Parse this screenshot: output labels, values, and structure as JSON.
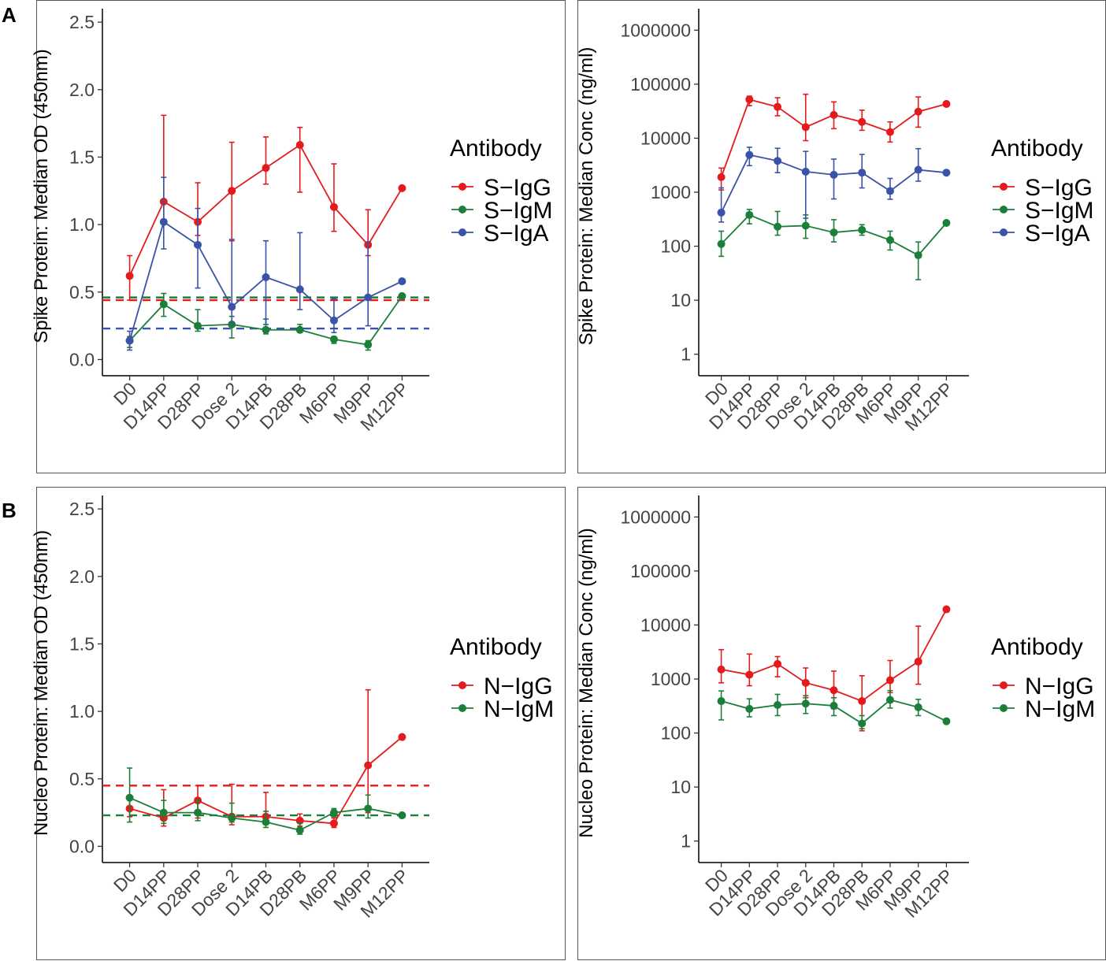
{
  "panel_labels": {
    "A": "A",
    "B": "B"
  },
  "colors": {
    "IgG": "#e41a1c",
    "IgM": "#1b7f3a",
    "IgA": "#3a52a8"
  },
  "chart_data": [
    {
      "id": "spike_od",
      "type": "line",
      "scale": "linear",
      "ylabel": "Spike Protein: Median OD (450nm)",
      "ylim": [
        -0.12,
        2.6
      ],
      "yticks": [
        0.0,
        0.5,
        1.0,
        1.5,
        2.0,
        2.5
      ],
      "ytick_labels": [
        "0.0",
        "0.5",
        "1.0",
        "1.5",
        "2.0",
        "2.5"
      ],
      "categories": [
        "D0",
        "D14PP",
        "D28PP",
        "Dose 2",
        "D14PB",
        "D28PB",
        "M6PP",
        "M9PP",
        "M12PP"
      ],
      "legend_title": "Antibody",
      "series": [
        {
          "name": "S−IgG",
          "color": "#e41a1c",
          "values": [
            0.62,
            1.17,
            1.02,
            1.25,
            1.42,
            1.59,
            1.13,
            0.85,
            1.27
          ],
          "err_low": [
            0.44,
            1.02,
            0.92,
            0.88,
            1.3,
            1.24,
            0.95,
            0.77,
            null
          ],
          "err_high": [
            0.77,
            1.81,
            1.31,
            1.61,
            1.65,
            1.72,
            1.45,
            1.11,
            null
          ]
        },
        {
          "name": "S−IgM",
          "color": "#1b7f3a",
          "values": [
            0.14,
            0.41,
            0.25,
            0.26,
            0.22,
            0.22,
            0.15,
            0.11,
            0.47
          ],
          "err_low": [
            0.09,
            0.32,
            0.21,
            0.16,
            0.19,
            0.2,
            0.12,
            0.07,
            null
          ],
          "err_high": [
            0.17,
            0.49,
            0.37,
            0.32,
            0.3,
            0.26,
            0.17,
            0.14,
            null
          ]
        },
        {
          "name": "S−IgA",
          "color": "#3a52a8",
          "values": [
            0.14,
            1.02,
            0.85,
            0.39,
            0.61,
            0.52,
            0.29,
            0.46,
            0.58
          ],
          "err_low": [
            0.07,
            0.82,
            0.53,
            0.27,
            0.26,
            0.37,
            0.2,
            0.25,
            null
          ],
          "err_high": [
            0.21,
            1.35,
            1.12,
            0.89,
            0.88,
            0.94,
            0.45,
            0.87,
            null
          ]
        }
      ],
      "cutoffs": [
        {
          "color": "#1b7f3a",
          "value": 0.46
        },
        {
          "color": "#e41a1c",
          "value": 0.44
        },
        {
          "color": "#3a52a8",
          "value": 0.23
        }
      ]
    },
    {
      "id": "spike_conc",
      "type": "line",
      "scale": "log10",
      "ylabel": "Spike Protein: Median Conc (ng/ml)",
      "ylim": [
        0.4,
        2500000
      ],
      "yticks": [
        1,
        10,
        100,
        1000,
        10000,
        100000,
        1000000
      ],
      "ytick_labels": [
        "1",
        "10",
        "100",
        "1000",
        "10000",
        "100000",
        "1000000"
      ],
      "categories": [
        "D0",
        "D14PP",
        "D28PP",
        "Dose 2",
        "D14PB",
        "D28PB",
        "M6PP",
        "M9PP",
        "M12PP"
      ],
      "legend_title": "Antibody",
      "series": [
        {
          "name": "S−IgG",
          "color": "#e41a1c",
          "values": [
            1900,
            52000,
            38000,
            16000,
            27000,
            20000,
            13000,
            31000,
            43000
          ],
          "err_low": [
            1100,
            40000,
            26000,
            9000,
            15000,
            14000,
            8500,
            16000,
            null
          ],
          "err_high": [
            2800,
            60000,
            56000,
            65000,
            47000,
            33000,
            20000,
            58000,
            null
          ]
        },
        {
          "name": "S−IgM",
          "color": "#1b7f3a",
          "values": [
            110,
            380,
            230,
            240,
            180,
            200,
            130,
            68,
            270
          ],
          "err_low": [
            65,
            260,
            160,
            140,
            120,
            160,
            85,
            24,
            null
          ],
          "err_high": [
            190,
            480,
            440,
            380,
            310,
            250,
            190,
            120,
            null
          ]
        },
        {
          "name": "S−IgA",
          "color": "#3a52a8",
          "values": [
            420,
            4900,
            3800,
            2400,
            2100,
            2300,
            1050,
            2600,
            2300
          ],
          "err_low": [
            280,
            3100,
            2300,
            330,
            750,
            1200,
            740,
            1600,
            null
          ],
          "err_high": [
            1200,
            6800,
            6500,
            5700,
            4100,
            5000,
            1800,
            6400,
            null
          ]
        }
      ],
      "cutoffs": []
    },
    {
      "id": "nucleo_od",
      "type": "line",
      "scale": "linear",
      "ylabel": "Nucleo Protein: Median OD (450nm)",
      "ylim": [
        -0.12,
        2.6
      ],
      "yticks": [
        0.0,
        0.5,
        1.0,
        1.5,
        2.0,
        2.5
      ],
      "ytick_labels": [
        "0.0",
        "0.5",
        "1.0",
        "1.5",
        "2.0",
        "2.5"
      ],
      "categories": [
        "D0",
        "D14PP",
        "D28PP",
        "Dose 2",
        "D14PB",
        "D28PB",
        "M6PP",
        "M9PP",
        "M12PP"
      ],
      "legend_title": "Antibody",
      "series": [
        {
          "name": "N−IgG",
          "color": "#e41a1c",
          "values": [
            0.28,
            0.21,
            0.34,
            0.22,
            0.22,
            0.19,
            0.17,
            0.6,
            0.81
          ],
          "err_low": [
            0.22,
            0.15,
            0.21,
            0.16,
            0.17,
            0.15,
            0.14,
            0.25,
            null
          ],
          "err_high": [
            0.35,
            0.42,
            0.45,
            0.46,
            0.4,
            0.24,
            0.21,
            1.16,
            null
          ]
        },
        {
          "name": "N−IgM",
          "color": "#1b7f3a",
          "values": [
            0.36,
            0.25,
            0.25,
            0.21,
            0.18,
            0.12,
            0.25,
            0.28,
            0.23
          ],
          "err_low": [
            0.18,
            0.17,
            0.19,
            0.18,
            0.14,
            0.09,
            0.22,
            0.21,
            null
          ],
          "err_high": [
            0.58,
            0.34,
            0.34,
            0.32,
            0.26,
            0.17,
            0.28,
            0.38,
            null
          ]
        }
      ],
      "cutoffs": [
        {
          "color": "#e41a1c",
          "value": 0.45
        },
        {
          "color": "#1b7f3a",
          "value": 0.23
        }
      ]
    },
    {
      "id": "nucleo_conc",
      "type": "line",
      "scale": "log10",
      "ylabel": "Nucleo Protein: Median Conc (ng/ml)",
      "ylim": [
        0.4,
        2500000
      ],
      "yticks": [
        1,
        10,
        100,
        1000,
        10000,
        100000,
        1000000
      ],
      "ytick_labels": [
        "1",
        "10",
        "100",
        "1000",
        "10000",
        "100000",
        "1000000"
      ],
      "categories": [
        "D0",
        "D14PP",
        "D28PP",
        "Dose 2",
        "D14PB",
        "D28PB",
        "M6PP",
        "M9PP",
        "M12PP"
      ],
      "legend_title": "Antibody",
      "series": [
        {
          "name": "N−IgG",
          "color": "#e41a1c",
          "values": [
            1500,
            1200,
            1900,
            850,
            620,
            390,
            950,
            2100,
            19500
          ],
          "err_low": [
            850,
            750,
            1100,
            450,
            280,
            110,
            560,
            800,
            null
          ],
          "err_high": [
            3500,
            2900,
            2600,
            1600,
            1400,
            1150,
            2200,
            9500,
            null
          ]
        },
        {
          "name": "N−IgM",
          "color": "#1b7f3a",
          "values": [
            390,
            280,
            330,
            350,
            320,
            150,
            410,
            300,
            165
          ],
          "err_low": [
            175,
            200,
            210,
            230,
            210,
            120,
            290,
            210,
            null
          ],
          "err_high": [
            600,
            430,
            520,
            490,
            450,
            210,
            610,
            420,
            null
          ]
        }
      ],
      "cutoffs": []
    }
  ]
}
